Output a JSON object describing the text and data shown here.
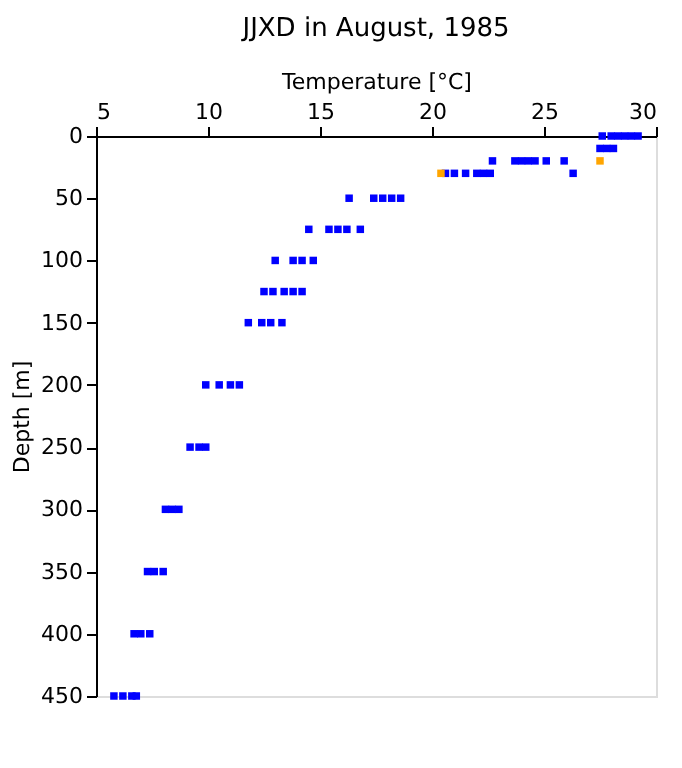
{
  "chart_data": {
    "type": "scatter",
    "title": "JJXD in August, 1985",
    "xlabel": "Temperature [°C]",
    "ylabel": "Depth [m]",
    "xlim": [
      5,
      30
    ],
    "ylim": [
      450,
      0
    ],
    "xticks": [
      5,
      10,
      15,
      20,
      25,
      30
    ],
    "yticks": [
      0,
      50,
      100,
      150,
      200,
      250,
      300,
      350,
      400,
      450
    ],
    "grid": false,
    "legend": false,
    "marker": "square",
    "series": [
      {
        "color": "#0000ff",
        "x": [
          27.6,
          28.0,
          28.3,
          28.6,
          28.9,
          29.2,
          27.5,
          27.8,
          28.1,
          22.7,
          23.7,
          24.0,
          24.3,
          24.6,
          25.1,
          25.9,
          20.6,
          21.0,
          21.5,
          22.0,
          22.3,
          22.6,
          26.3,
          16.3,
          17.4,
          17.8,
          18.2,
          18.6,
          14.5,
          15.4,
          15.8,
          16.2,
          16.8,
          13.0,
          13.8,
          14.2,
          14.7,
          12.5,
          12.9,
          13.4,
          13.8,
          14.2,
          11.8,
          12.4,
          12.8,
          13.3,
          9.9,
          10.5,
          11.0,
          11.4,
          9.2,
          9.6,
          9.9,
          8.1,
          8.4,
          8.7,
          7.3,
          7.6,
          8.0,
          6.7,
          7.0,
          7.4,
          5.8,
          6.2,
          6.6,
          6.8
        ],
        "values": [
          0,
          0,
          0,
          0,
          0,
          0,
          10,
          10,
          10,
          20,
          20,
          20,
          20,
          20,
          20,
          20,
          30,
          30,
          30,
          30,
          30,
          30,
          30,
          50,
          50,
          50,
          50,
          50,
          75,
          75,
          75,
          75,
          75,
          100,
          100,
          100,
          100,
          125,
          125,
          125,
          125,
          125,
          150,
          150,
          150,
          150,
          200,
          200,
          200,
          200,
          250,
          250,
          250,
          300,
          300,
          300,
          350,
          350,
          350,
          400,
          400,
          400,
          450,
          450,
          450,
          450
        ]
      },
      {
        "color": "#ffa500",
        "x": [
          27.5,
          20.4
        ],
        "values": [
          20,
          30
        ]
      }
    ]
  }
}
